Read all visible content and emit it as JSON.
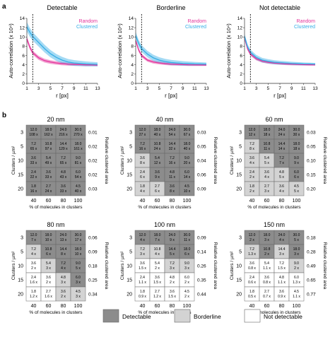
{
  "panel_labels": {
    "a": "a",
    "b": "b"
  },
  "colors": {
    "random": "#e3339b",
    "clustered": "#35aee6",
    "detectable": "#8c8c8c",
    "borderline": "#d3d3d3",
    "not_detectable": "#ffffff",
    "axis": "#333333"
  },
  "chart_data": [
    {
      "type": "line",
      "title": "Detectable",
      "xlabel": "r [px]",
      "ylabel": "Auto-correlation (x 10⁴)",
      "xticks": [
        "1",
        "3",
        "5",
        "7",
        "9",
        "11",
        "13"
      ],
      "yticks": [
        "0",
        "2",
        "4",
        "6",
        "8",
        "10",
        "12",
        "14"
      ],
      "xlim": [
        1,
        13
      ],
      "ylim": [
        0,
        14
      ],
      "marker_x": 2,
      "legend": "top-right",
      "x": [
        1,
        1.5,
        2,
        3,
        4,
        5,
        6,
        7,
        8,
        9,
        10,
        11,
        12,
        13
      ],
      "series": [
        {
          "name": "Random",
          "color": "#e3339b",
          "values": [
            9.6,
            7.8,
            6.6,
            5.5,
            4.9,
            4.6,
            4.4,
            4.25,
            4.15,
            4.1,
            4.05,
            4.0,
            3.98,
            3.95
          ],
          "spread": 0.5
        },
        {
          "name": "Clustered",
          "color": "#35aee6",
          "values": [
            12.2,
            11.0,
            10.1,
            8.8,
            7.5,
            6.4,
            5.6,
            5.0,
            4.6,
            4.4,
            4.3,
            4.2,
            4.15,
            4.1
          ],
          "spread": 1.0
        }
      ]
    },
    {
      "type": "line",
      "title": "Borderline",
      "xlabel": "r [px]",
      "ylabel": "Auto-correlation (x 10⁴)",
      "xticks": [
        "1",
        "3",
        "5",
        "7",
        "9",
        "11",
        "13"
      ],
      "yticks": [
        "0",
        "2",
        "4",
        "6",
        "8",
        "10",
        "12",
        "14"
      ],
      "xlim": [
        1,
        13
      ],
      "ylim": [
        0,
        14
      ],
      "marker_x": 2,
      "legend": "top-right",
      "x": [
        1,
        1.5,
        2,
        3,
        4,
        5,
        6,
        7,
        8,
        9,
        10,
        11,
        12,
        13
      ],
      "series": [
        {
          "name": "Random",
          "color": "#e3339b",
          "values": [
            9.2,
            7.2,
            6.0,
            5.0,
            4.6,
            4.4,
            4.25,
            4.15,
            4.1,
            4.05,
            4.0,
            3.98,
            3.96,
            3.95
          ],
          "spread": 0.4
        },
        {
          "name": "Clustered",
          "color": "#35aee6",
          "values": [
            10.3,
            8.6,
            7.5,
            6.3,
            5.5,
            5.0,
            4.7,
            4.5,
            4.4,
            4.3,
            4.25,
            4.2,
            4.18,
            4.15
          ],
          "spread": 0.8
        }
      ]
    },
    {
      "type": "line",
      "title": "Not detectable",
      "xlabel": "r [px]",
      "ylabel": "Auto-correlation (x 10⁴)",
      "xticks": [
        "1",
        "3",
        "5",
        "7",
        "9",
        "11",
        "13"
      ],
      "yticks": [
        "0",
        "2",
        "4",
        "6",
        "8",
        "10",
        "12",
        "14"
      ],
      "xlim": [
        1,
        13
      ],
      "ylim": [
        0,
        14
      ],
      "marker_x": 2,
      "legend": "top-right",
      "x": [
        1,
        1.5,
        2,
        3,
        4,
        5,
        6,
        7,
        8,
        9,
        10,
        11,
        12,
        13
      ],
      "series": [
        {
          "name": "Random",
          "color": "#e3339b",
          "values": [
            9.8,
            7.5,
            6.3,
            5.3,
            4.8,
            4.55,
            4.4,
            4.3,
            4.2,
            4.15,
            4.1,
            4.05,
            4.02,
            4.0
          ],
          "spread": 0.4
        },
        {
          "name": "Clustered",
          "color": "#35aee6",
          "values": [
            10.1,
            7.9,
            6.7,
            5.6,
            5.0,
            4.75,
            4.55,
            4.45,
            4.38,
            4.3,
            4.25,
            4.2,
            4.18,
            4.15
          ],
          "spread": 0.6
        }
      ]
    },
    {
      "type": "heatmap",
      "title": "20 nm",
      "xlabel": "% of molecules in clusters",
      "ylabel": "Clusters / µm²",
      "right_label": "Relative clustered area",
      "x": [
        "40",
        "60",
        "80",
        "100"
      ],
      "y": [
        "3",
        "5",
        "10",
        "15",
        "20"
      ],
      "right_values": [
        "0.01",
        "0.02",
        "0.02",
        "0.02",
        "0.03"
      ],
      "values": [
        [
          "12.0\n108 x",
          "18.0\n162 x",
          "24.0\n216 x",
          "30.0\n270 x"
        ],
        [
          "7.2\n65 x",
          "10.8\n97 x",
          "14.4\n129 x",
          "18.0\n161 x"
        ],
        [
          "3.6\n33 x",
          "5.4\n49 x",
          "7.2\n65 x",
          "9.0\n81 x"
        ],
        [
          "2.4\n22 x",
          "3.6\n33 x",
          "4.8\n43 x",
          "6.0\n54 x"
        ],
        [
          "1.8\n16 x",
          "2.7\n24 x",
          "3.6\n33 x",
          "4.5\n40 x"
        ]
      ],
      "status": [
        [
          "D",
          "D",
          "D",
          "D"
        ],
        [
          "D",
          "D",
          "D",
          "D"
        ],
        [
          "D",
          "D",
          "D",
          "D"
        ],
        [
          "D",
          "D",
          "D",
          "D"
        ],
        [
          "D",
          "D",
          "D",
          "D"
        ]
      ]
    },
    {
      "type": "heatmap",
      "title": "40 nm",
      "xlabel": "% of molecules in clusters",
      "ylabel": "Clusters / µm²",
      "right_label": "Relative clustered area",
      "x": [
        "40",
        "60",
        "80",
        "100"
      ],
      "y": [
        "3",
        "5",
        "10",
        "15",
        "20"
      ],
      "right_values": [
        "0.03",
        "0.05",
        "0.04",
        "0.06",
        "0.09"
      ],
      "values": [
        [
          "12.0\n27 x",
          "18.0\n40 x",
          "24.0\n54 x",
          "30.0\n67 x"
        ],
        [
          "7.2\n16 x",
          "10.8\n24 x",
          "14.4\n32 x",
          "18.0\n40 x"
        ],
        [
          "3.6\n8 x",
          "5.4\n12 x",
          "7.2\n16 x",
          "9.0\n20 x"
        ],
        [
          "2.4\n6 x",
          "3.6\n9 x",
          "4.8\n11 x",
          "6.0\n14 x"
        ],
        [
          "1.8\n4 x",
          "2.7\n6 x",
          "3.6\n8 x",
          "4.5\n10 x"
        ]
      ],
      "status": [
        [
          "D",
          "D",
          "D",
          "D"
        ],
        [
          "D",
          "D",
          "D",
          "D"
        ],
        [
          "B",
          "D",
          "D",
          "D"
        ],
        [
          "B",
          "D",
          "D",
          "D"
        ],
        [
          "B",
          "B",
          "D",
          "D"
        ]
      ]
    },
    {
      "type": "heatmap",
      "title": "60 nm",
      "xlabel": "% of molecules in clusters",
      "ylabel": "Clusters / µm²",
      "right_label": "Relative clustered area",
      "x": [
        "40",
        "60",
        "80",
        "100"
      ],
      "y": [
        "3",
        "5",
        "10",
        "15",
        "20"
      ],
      "right_values": [
        "0.03",
        "0.05",
        "0.10",
        "0.15",
        "0.20"
      ],
      "values": [
        [
          "12.0\n12 x",
          "18.0\n18 x",
          "24.0\n24 x",
          "30.0\n30 x"
        ],
        [
          "7.2\n8 x",
          "10.8\n11 x",
          "14.4\n14 x",
          "18.0\n18 x"
        ],
        [
          "3.6\n4 x",
          "5.4\n5 x",
          "7.2\n7 x",
          "9.0\n9 x"
        ],
        [
          "2.4\n2 x",
          "3.6\n4 x",
          "4.8\n5 x",
          "6.0\n6 x"
        ],
        [
          "1.8\n2 x",
          "2.7\n3 x",
          "3.6\n4 x",
          "4.5\n5 x"
        ]
      ],
      "status": [
        [
          "D",
          "D",
          "D",
          "D"
        ],
        [
          "B",
          "D",
          "D",
          "D"
        ],
        [
          "B",
          "B",
          "D",
          "D"
        ],
        [
          "B",
          "B",
          "B",
          "D"
        ],
        [
          "B",
          "B",
          "B",
          "B"
        ]
      ]
    },
    {
      "type": "heatmap",
      "title": "80 nm",
      "xlabel": "% of molecules in clusters",
      "ylabel": "Clusters / µm²",
      "right_label": "Relative clustered area",
      "x": [
        "40",
        "60",
        "80",
        "100"
      ],
      "y": [
        "3",
        "5",
        "10",
        "15",
        "20"
      ],
      "right_values": [
        "0.06",
        "0.09",
        "0.18",
        "0.25",
        "0.34"
      ],
      "values": [
        [
          "12.0\n7 x",
          "18.0\n10 x",
          "24.0\n13 x",
          "30.0\n17 x"
        ],
        [
          "7.2\n4 x",
          "10.8\n6 x",
          "14.4\n8 x",
          "18.0\n10 x"
        ],
        [
          "3.6\n2 x",
          "5.4\n3 x",
          "7.2\n4 x",
          "9.0\n5 x"
        ],
        [
          "2.4\n1.6 x",
          "3.6\n2 x",
          "4.8\n3 x",
          "6.0\n3 x"
        ],
        [
          "1.8\n1.2 x",
          "2.7\n1.6 x",
          "3.6\n2 x",
          "4.5\n3 x"
        ]
      ],
      "status": [
        [
          "D",
          "D",
          "D",
          "D"
        ],
        [
          "B",
          "D",
          "D",
          "D"
        ],
        [
          "N",
          "B",
          "D",
          "D"
        ],
        [
          "N",
          "N",
          "B",
          "D"
        ],
        [
          "N",
          "N",
          "B",
          "B"
        ]
      ]
    },
    {
      "type": "heatmap",
      "title": "100 nm",
      "xlabel": "% of molecules in clusters",
      "ylabel": "Clusters / µm²",
      "right_label": "Relative clustered area",
      "x": [
        "40",
        "60",
        "80",
        "100"
      ],
      "y": [
        "3",
        "5",
        "10",
        "15",
        "20"
      ],
      "right_values": [
        "0.09",
        "0.14",
        "0.26",
        "0.35",
        "0.44"
      ],
      "values": [
        [
          "12.0\n4 x",
          "18.0\n7 x",
          "24.0\n9 x",
          "30.0\n11 x"
        ],
        [
          "7.2\n3 x",
          "10.8\n4 x",
          "14.4\n5 x",
          "18.0\n6 x"
        ],
        [
          "3.6\n1.5 x",
          "5.4\n2 x",
          "7.2\n3 x",
          "9.0\n3 x"
        ],
        [
          "2.4\n1.1 x",
          "3.6\n1.5 x",
          "4.8\n2 x",
          "6.0\n2 x"
        ],
        [
          "1.8\n0.9 x",
          "2.7\n1.2 x",
          "3.6\n1.5 x",
          "4.5\n2 x"
        ]
      ],
      "status": [
        [
          "D",
          "D",
          "D",
          "D"
        ],
        [
          "B",
          "B",
          "D",
          "D"
        ],
        [
          "N",
          "N",
          "B",
          "B"
        ],
        [
          "N",
          "N",
          "N",
          "N"
        ],
        [
          "N",
          "N",
          "N",
          "N"
        ]
      ]
    },
    {
      "type": "heatmap",
      "title": "150 nm",
      "xlabel": "% of molecules in clusters",
      "ylabel": "Clusters / µm²",
      "right_label": "Relative clustered area",
      "x": [
        "40",
        "60",
        "80",
        "100"
      ],
      "y": [
        "3",
        "5",
        "10",
        "15",
        "20"
      ],
      "right_values": [
        "0.18",
        "0.28",
        "0.49",
        "0.65",
        "0.77"
      ],
      "values": [
        [
          "12.0\n2 x",
          "18.0\n3 x",
          "24.0\n4 x",
          "30.0\n5 x"
        ],
        [
          "7.2\n1.3 x",
          "10.8\n2 x",
          "14.4\n3 x",
          "18.0\n3 x"
        ],
        [
          "3.6\n0.8 x",
          "5.4\n1.1 x",
          "7.2\n1.5 x",
          "9.0\n2 x"
        ],
        [
          "2.4\n0.6 x",
          "3.6\n0.8 x",
          "4.8\n1.1 x",
          "6.0\n1.3 x"
        ],
        [
          "1.8\n0.5 x",
          "2.7\n0.7 x",
          "3.6\n0.9 x",
          "4.5\n1.1 x"
        ]
      ],
      "status": [
        [
          "D",
          "D",
          "D",
          "D"
        ],
        [
          "B",
          "D",
          "B",
          "D"
        ],
        [
          "N",
          "N",
          "N",
          "B"
        ],
        [
          "N",
          "N",
          "N",
          "N"
        ],
        [
          "N",
          "N",
          "N",
          "N"
        ]
      ]
    }
  ],
  "legend": {
    "detectable": "Detectable",
    "borderline": "Borderline",
    "not_detectable": "Not detectable"
  }
}
